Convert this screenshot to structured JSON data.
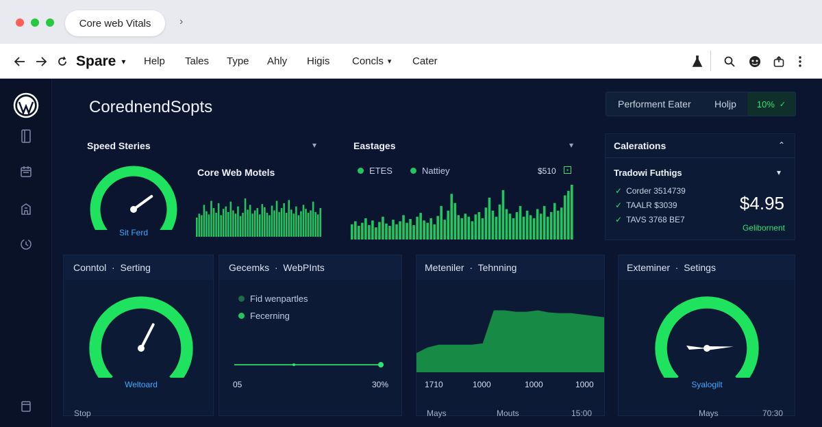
{
  "browser": {
    "tab_title": "Core web Vitals",
    "tab_chevron": "›"
  },
  "toolbar": {
    "brand": "Spare",
    "brand_chevron": "▾",
    "menu": [
      "Help",
      "Tales",
      "Type",
      "Ahly",
      "Higis",
      "Concls",
      "Cater"
    ],
    "concls_chevron": "▾"
  },
  "header": {
    "title": "CorednendSopts",
    "buttons": [
      "Performent Eater",
      "Holjp"
    ],
    "percent": "10%",
    "percent_chevron": "✓"
  },
  "speed": {
    "title": "Speed Steries",
    "gauge_label": "Sit Ferd",
    "gauge_value": 0.7,
    "sub_title": "Core Web Motels",
    "bars": [
      24,
      29,
      27,
      40,
      32,
      28,
      45,
      36,
      30,
      42,
      27,
      35,
      38,
      31,
      44,
      33,
      29,
      38,
      26,
      30,
      48,
      34,
      40,
      29,
      33,
      36,
      28,
      41,
      37,
      30,
      27,
      39,
      33,
      45,
      31,
      36,
      42,
      30,
      46,
      34,
      29,
      38,
      27,
      32,
      40,
      35,
      30,
      33,
      44,
      31,
      28,
      36
    ]
  },
  "eastages": {
    "title": "Eastages",
    "legend": [
      "ETES",
      "Nattiey"
    ],
    "value": "$510",
    "bars": [
      20,
      24,
      18,
      22,
      28,
      19,
      25,
      16,
      23,
      30,
      21,
      18,
      26,
      20,
      24,
      32,
      22,
      27,
      19,
      30,
      35,
      25,
      22,
      28,
      20,
      31,
      44,
      26,
      38,
      60,
      48,
      32,
      28,
      34,
      30,
      24,
      33,
      36,
      28,
      42,
      55,
      38,
      30,
      46,
      65,
      40,
      34,
      28,
      36,
      44,
      30,
      38,
      32,
      28,
      40,
      34,
      44,
      30,
      36,
      48,
      38,
      42,
      58,
      64,
      72
    ]
  },
  "calerations": {
    "title": "Calerations",
    "sub_title": "Tradowi Futhigs",
    "items": [
      "Corder 3514739",
      "TAALR $3039",
      "TAVS 3768 BE7"
    ],
    "price": "$4.95",
    "price_label": "Gelibornent"
  },
  "panels": {
    "p1": {
      "tab1": "Conntol",
      "tab2": "Serting",
      "gauge_label": "Weltoard",
      "gauge_value": 0.6,
      "footer": "Stop"
    },
    "p2": {
      "tab1": "Gecemks",
      "tab2": "WebPInts",
      "legend": [
        "Fid wenpartles",
        "Fecerning"
      ],
      "axis_start": "05",
      "axis_end": "30%",
      "slider_value": 0.98
    },
    "p3": {
      "tab1": "Meteniler",
      "tab2": "Tehnning",
      "axis": [
        "1710",
        "1000",
        "1000",
        "1000"
      ],
      "footer": [
        "Mays",
        "Mouts",
        "15:00"
      ],
      "area": [
        0.28,
        0.36,
        0.4,
        0.4,
        0.4,
        0.4,
        0.42,
        0.9,
        0.9,
        0.88,
        0.88,
        0.9,
        0.87,
        0.86,
        0.86,
        0.84,
        0.82,
        0.8
      ]
    },
    "p4": {
      "tab1": "Exteminer",
      "tab2": "Setings",
      "gauge_label": "Syalogilt",
      "gauge_value": 0.82,
      "footer": [
        "Mays",
        "70:30"
      ]
    }
  },
  "colors": {
    "accent": "#22c55e",
    "bright": "#2de370",
    "bg": "#0b1530",
    "card": "#0d1a36",
    "gauge_text": "#3fa9ff"
  },
  "icons": [
    "back-arrow-icon",
    "forward-arrow-icon",
    "reload-icon",
    "flask-icon",
    "search-icon",
    "face-icon",
    "share-icon",
    "more-icon",
    "wordpress-logo-icon",
    "book-icon",
    "calendar-icon",
    "building-icon",
    "clock-icon",
    "document-icon"
  ]
}
